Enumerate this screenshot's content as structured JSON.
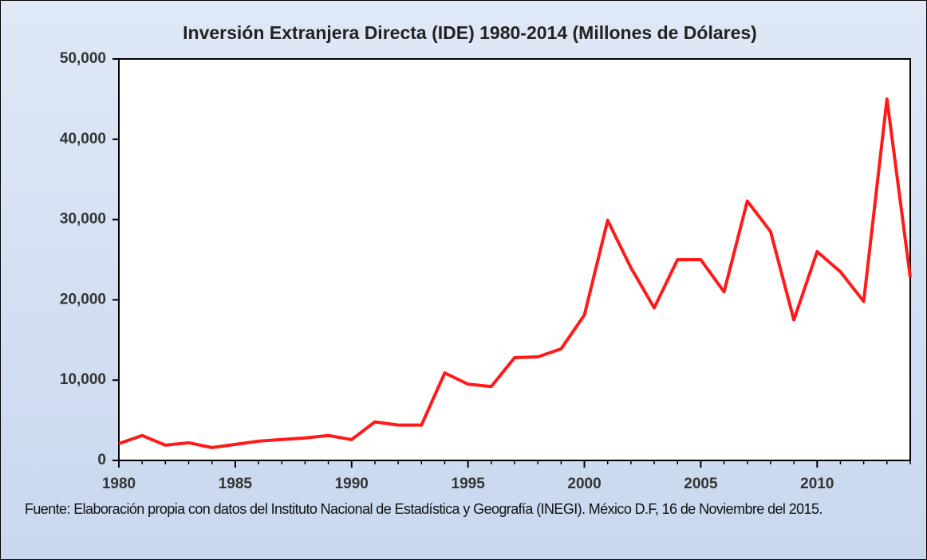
{
  "chart_data": {
    "type": "line",
    "title": "Inversión Extranjera Directa (IDE) 1980-2014  (Millones de Dólares)",
    "note": "Fuente: Elaboración propia con datos del Instituto Nacional de Estadística y Geografía (INEGI). México D.F, 16 de Noviembre del 2015.",
    "x": [
      1980,
      1981,
      1982,
      1983,
      1984,
      1985,
      1986,
      1987,
      1988,
      1989,
      1990,
      1991,
      1992,
      1993,
      1994,
      1995,
      1996,
      1997,
      1998,
      1999,
      2000,
      2001,
      2002,
      2003,
      2004,
      2005,
      2006,
      2007,
      2008,
      2009,
      2010,
      2011,
      2012,
      2013,
      2014
    ],
    "values": [
      2100,
      3100,
      1900,
      2200,
      1600,
      2000,
      2400,
      2600,
      2800,
      3100,
      2600,
      4800,
      4400,
      4400,
      10900,
      9500,
      9200,
      12800,
      12900,
      13900,
      18100,
      29900,
      24000,
      19000,
      25000,
      25000,
      21000,
      32300,
      28500,
      17500,
      26000,
      23500,
      19800,
      45000,
      22800
    ],
    "color": "#ff1a1a",
    "xlim": [
      1980,
      2014
    ],
    "xticks": [
      1980,
      1985,
      1990,
      1995,
      2000,
      2005,
      2010
    ],
    "ylim": [
      0,
      50000
    ],
    "yticks": [
      0,
      {
        "value": 10000,
        "label": "10,000"
      },
      {
        "value": 20000,
        "label": "20,000"
      },
      {
        "value": 30000,
        "label": "30,000"
      },
      {
        "value": 40000,
        "label": "40,000"
      },
      {
        "value": 50000,
        "label": "50,000"
      }
    ],
    "grid": false
  }
}
